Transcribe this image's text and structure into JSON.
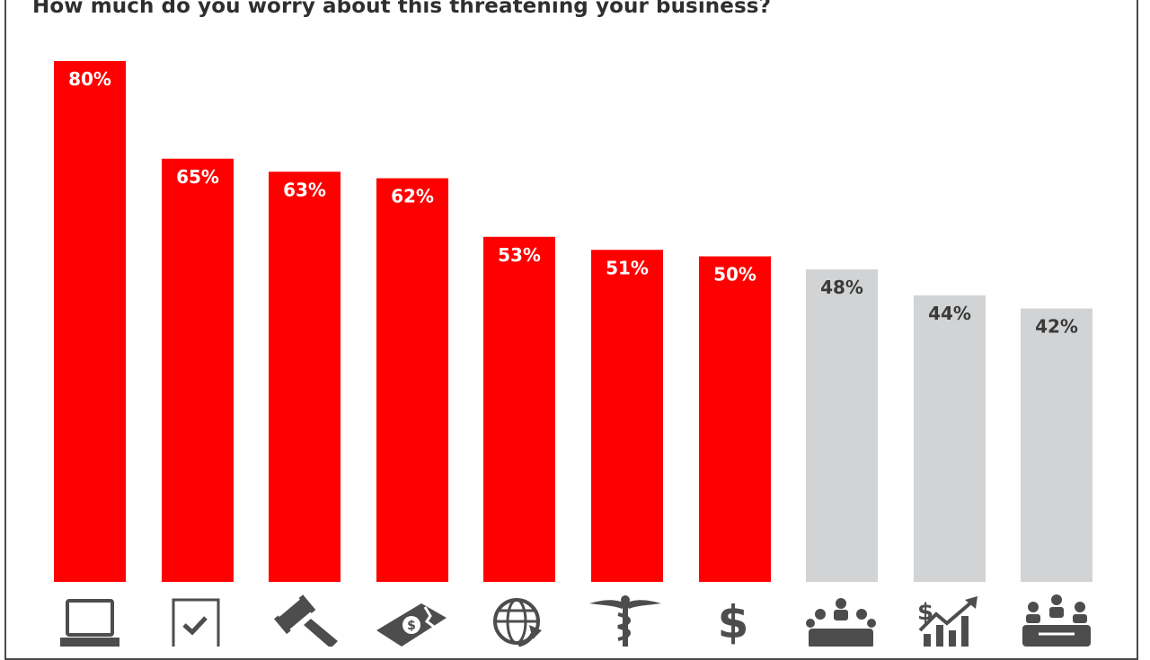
{
  "title": "How much do you worry about this threatening your business?",
  "colors": {
    "highlight": "#ff0000",
    "muted": "#d1d3d4",
    "label_on_highlight": "#ffffff",
    "label_on_muted": "#3a3a3a",
    "icon": "#4d4d4d"
  },
  "chart_data": {
    "type": "bar",
    "title": "How much do you worry about this threatening your business?",
    "xlabel": "",
    "ylabel": "",
    "ylim": [
      0,
      80
    ],
    "grid": false,
    "legend": "none",
    "categories": [
      "laptop",
      "checklist",
      "gavel",
      "money",
      "globe",
      "caduceus",
      "dollar",
      "meeting",
      "growth",
      "team"
    ],
    "values": [
      80,
      65,
      63,
      62,
      53,
      51,
      50,
      48,
      44,
      42
    ],
    "labels": [
      "80%",
      "65%",
      "63%",
      "62%",
      "53%",
      "51%",
      "50%",
      "48%",
      "44%",
      "42%"
    ],
    "highlighted": [
      true,
      true,
      true,
      true,
      true,
      true,
      true,
      false,
      false,
      false
    ]
  },
  "icons": [
    "laptop-icon",
    "checklist-icon",
    "gavel-icon",
    "money-bill-icon",
    "globe-icon",
    "caduceus-icon",
    "dollar-sign-icon",
    "meeting-icon",
    "growth-chart-icon",
    "team-icon"
  ]
}
